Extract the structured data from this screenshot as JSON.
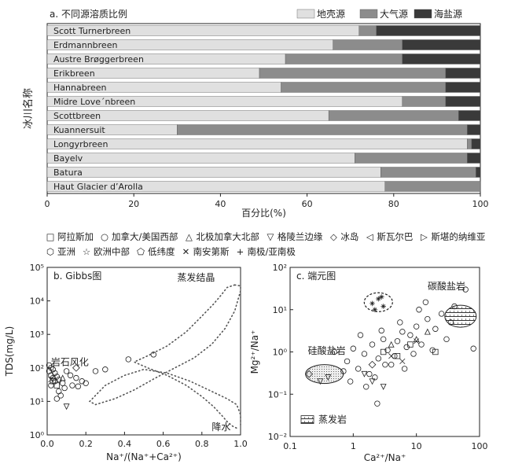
{
  "chart_data": [
    {
      "id": "a",
      "type": "bar",
      "orientation": "horizontal",
      "stacked": true,
      "title": "a. 不同源溶质比例",
      "xlabel": "百分比(%)",
      "ylabel": "冰川名称",
      "xlim": [
        0,
        100
      ],
      "xticks": [
        "0",
        "20",
        "40",
        "60",
        "80",
        "100"
      ],
      "legend_position": "top-right",
      "categories": [
        "Scott Turnerbreen",
        "Erdmannbreen",
        "Austre Brøggerbreen",
        "Erikbreen",
        "Hannabreen",
        "Midre Love´nbreen",
        "Scottbreen",
        "Kuannersuit",
        "Longyrbreen",
        "Bayelv",
        "Batura",
        "Haut Glacier d’Arolla"
      ],
      "series": [
        {
          "name": "地壳源",
          "color": "#e0e0e0",
          "values": [
            72,
            66,
            55,
            49,
            54,
            82,
            65,
            30,
            97,
            71,
            77,
            78
          ]
        },
        {
          "name": "大气源",
          "color": "#8c8c8c",
          "values": [
            4,
            16,
            27,
            43,
            38,
            10,
            30,
            67,
            1,
            26,
            22,
            22
          ]
        },
        {
          "name": "海盐源",
          "color": "#3a3a3a",
          "values": [
            24,
            18,
            18,
            8,
            8,
            8,
            5,
            3,
            2,
            3,
            1,
            0
          ]
        }
      ]
    },
    {
      "id": "b",
      "type": "scatter",
      "title": "b. Gibbs图",
      "xlabel": "Na⁺/(Na⁺+Ca²⁺)",
      "ylabel": "TDS(mg/L)",
      "xlim": [
        0,
        1
      ],
      "ylog": true,
      "ylim": [
        1,
        100000
      ],
      "xticks": [
        "0.0",
        "0.2",
        "0.4",
        "0.6",
        "0.8",
        "1.0"
      ],
      "yticks": [
        "10⁰",
        "10¹",
        "10²",
        "10³",
        "10⁴",
        "10⁵"
      ],
      "annotations": [
        "蒸发结晶",
        "岩石风化",
        "降水"
      ],
      "envelope_outer": [
        [
          0.97,
          30000
        ],
        [
          0.93,
          25000
        ],
        [
          0.9,
          15000
        ],
        [
          0.86,
          8000
        ],
        [
          0.8,
          3500
        ],
        [
          0.72,
          1200
        ],
        [
          0.62,
          450
        ],
        [
          0.52,
          230
        ],
        [
          0.45,
          150
        ],
        [
          0.52,
          100
        ],
        [
          0.62,
          60
        ],
        [
          0.72,
          30
        ],
        [
          0.8,
          14
        ],
        [
          0.86,
          7
        ],
        [
          0.9,
          4
        ],
        [
          0.93,
          2.5
        ],
        [
          0.96,
          1.8
        ],
        [
          0.99,
          1.5
        ]
      ],
      "envelope_inner": [
        [
          0.97,
          30000
        ],
        [
          1.0,
          28000
        ],
        [
          1.0,
          20000
        ],
        [
          0.97,
          5000
        ],
        [
          0.92,
          1500
        ],
        [
          0.85,
          500
        ],
        [
          0.76,
          200
        ],
        [
          0.66,
          100
        ],
        [
          0.56,
          50
        ],
        [
          0.45,
          22
        ],
        [
          0.35,
          12
        ],
        [
          0.25,
          8
        ],
        [
          0.22,
          10
        ],
        [
          0.3,
          30
        ],
        [
          0.4,
          60
        ],
        [
          0.5,
          90
        ],
        [
          0.62,
          70
        ],
        [
          0.74,
          40
        ],
        [
          0.85,
          20
        ],
        [
          0.93,
          12
        ],
        [
          0.98,
          8
        ],
        [
          1.0,
          4
        ],
        [
          1.0,
          2
        ]
      ],
      "points": {
        "加拿大/美国西部": [
          [
            0.01,
            120
          ],
          [
            0.02,
            100
          ],
          [
            0.03,
            90
          ],
          [
            0.01,
            80
          ],
          [
            0.04,
            70
          ],
          [
            0.02,
            60
          ],
          [
            0.05,
            55
          ],
          [
            0.03,
            50
          ],
          [
            0.06,
            45
          ],
          [
            0.04,
            40
          ],
          [
            0.08,
            35
          ],
          [
            0.02,
            30
          ],
          [
            0.1,
            80
          ],
          [
            0.12,
            60
          ],
          [
            0.15,
            50
          ],
          [
            0.18,
            40
          ],
          [
            0.09,
            25
          ],
          [
            0.06,
            20
          ],
          [
            0.13,
            30
          ],
          [
            0.2,
            35
          ],
          [
            0.25,
            80
          ],
          [
            0.3,
            90
          ],
          [
            0.42,
            180
          ],
          [
            0.55,
            250
          ],
          [
            0.07,
            15
          ],
          [
            0.05,
            12
          ],
          [
            0.16,
            28
          ]
        ],
        "冰岛": [
          [
            0.15,
            100
          ]
        ],
        "格陵兰边缘": [
          [
            0.1,
            7
          ]
        ],
        "阿拉斯加": [
          [
            0.03,
            40
          ],
          [
            0.05,
            30
          ]
        ],
        "北极加拿大北部": [
          [
            0.08,
            50
          ]
        ],
        "南安第斯": [
          [
            0.02,
            45
          ]
        ]
      }
    },
    {
      "id": "c",
      "type": "scatter",
      "title": "c. 端元图",
      "xlabel": "Ca²⁺/Na⁺",
      "ylabel": "Mg²⁺/Na⁺",
      "xlog": true,
      "ylog": true,
      "xlim": [
        0.1,
        100
      ],
      "ylim": [
        0.01,
        100
      ],
      "xticks": [
        "0.1",
        "1",
        "10",
        "100"
      ],
      "yticks": [
        "10⁻²",
        "10⁻¹",
        "10⁰",
        "10¹",
        "10²"
      ],
      "annotations": [
        "碳酸盐岩",
        "硅酸盐岩",
        "蒸发岩"
      ],
      "endmembers": [
        {
          "name": "碳酸盐岩",
          "center": [
            50,
            7
          ],
          "fill": "hatched"
        },
        {
          "name": "硅酸盐岩",
          "center": [
            0.35,
            0.3
          ],
          "fill": "dotted"
        },
        {
          "name": "蒸发岩",
          "center": [
            2.5,
            15
          ],
          "fill": "none"
        }
      ],
      "points": {
        "加拿大/美国西部": [
          [
            0.5,
            1.0
          ],
          [
            0.8,
            0.6
          ],
          [
            1.0,
            1.2
          ],
          [
            1.2,
            0.4
          ],
          [
            1.5,
            0.9
          ],
          [
            2.0,
            1.5
          ],
          [
            2.5,
            0.7
          ],
          [
            3.0,
            2.0
          ],
          [
            3.5,
            1.1
          ],
          [
            4.0,
            0.5
          ],
          [
            5.0,
            1.8
          ],
          [
            6.0,
            3.0
          ],
          [
            7.0,
            1.3
          ],
          [
            8.0,
            2.5
          ],
          [
            10.0,
            4.0
          ],
          [
            12.0,
            1.5
          ],
          [
            15.0,
            6.0
          ],
          [
            20.0,
            3.5
          ],
          [
            25.0,
            8.0
          ],
          [
            30.0,
            2.0
          ],
          [
            40.0,
            12.0
          ],
          [
            60.0,
            30.0
          ],
          [
            80.0,
            1.2
          ],
          [
            1.8,
            0.3
          ],
          [
            2.2,
            0.25
          ],
          [
            3.2,
            0.5
          ],
          [
            0.7,
            0.35
          ],
          [
            4.5,
            0.8
          ],
          [
            9.0,
            0.9
          ],
          [
            18.0,
            1.1
          ],
          [
            1.3,
            2.5
          ],
          [
            2.8,
            3.2
          ],
          [
            5.5,
            5.0
          ],
          [
            11.0,
            10.0
          ],
          [
            14.0,
            15.0
          ],
          [
            0.9,
            0.2
          ],
          [
            1.6,
            0.15
          ],
          [
            2.4,
            0.06
          ],
          [
            6.5,
            0.4
          ],
          [
            35.0,
            5.0
          ]
        ],
        "欧洲中部": [
          [
            2.0,
            14.0
          ],
          [
            2.5,
            18.0
          ],
          [
            3.0,
            12.0
          ],
          [
            2.2,
            10.0
          ],
          [
            2.8,
            20.0
          ]
        ],
        "阿拉斯加": [
          [
            3.0,
            1.0
          ],
          [
            5.0,
            0.8
          ],
          [
            8.0,
            1.5
          ],
          [
            20.0,
            1.0
          ]
        ],
        "北极加拿大北部": [
          [
            4.0,
            1.5
          ],
          [
            10.0,
            2.0
          ],
          [
            15.0,
            3.0
          ]
        ],
        "格陵兰边缘": [
          [
            2.0,
            0.2
          ],
          [
            3.0,
            0.15
          ],
          [
            1.5,
            0.3
          ],
          [
            0.4,
            0.25
          ],
          [
            0.3,
            0.2
          ]
        ],
        "冰岛": [
          [
            0.2,
            0.3
          ],
          [
            2.0,
            0.5
          ]
        ],
        "南安第斯": [
          [
            4.0,
            0.8
          ],
          [
            6.0,
            0.6
          ],
          [
            10.0,
            1.8
          ]
        ]
      }
    }
  ],
  "legend": [
    {
      "symbol": "□",
      "label": "阿拉斯加"
    },
    {
      "symbol": "○",
      "label": "加拿大/美国西部"
    },
    {
      "symbol": "△",
      "label": "北极加拿大北部"
    },
    {
      "symbol": "▽",
      "label": "格陵兰边缘"
    },
    {
      "symbol": "◇",
      "label": "冰岛"
    },
    {
      "symbol": "◁",
      "label": "斯瓦尔巴"
    },
    {
      "symbol": "▷",
      "label": "斯堪的纳维亚"
    },
    {
      "symbol": "⬡",
      "label": "亚洲"
    },
    {
      "symbol": "☆",
      "label": "欧洲中部"
    },
    {
      "symbol": "⬠",
      "label": "低纬度"
    },
    {
      "symbol": "✕",
      "label": "南安第斯"
    },
    {
      "symbol": "+",
      "label": "南极/亚南极"
    }
  ]
}
